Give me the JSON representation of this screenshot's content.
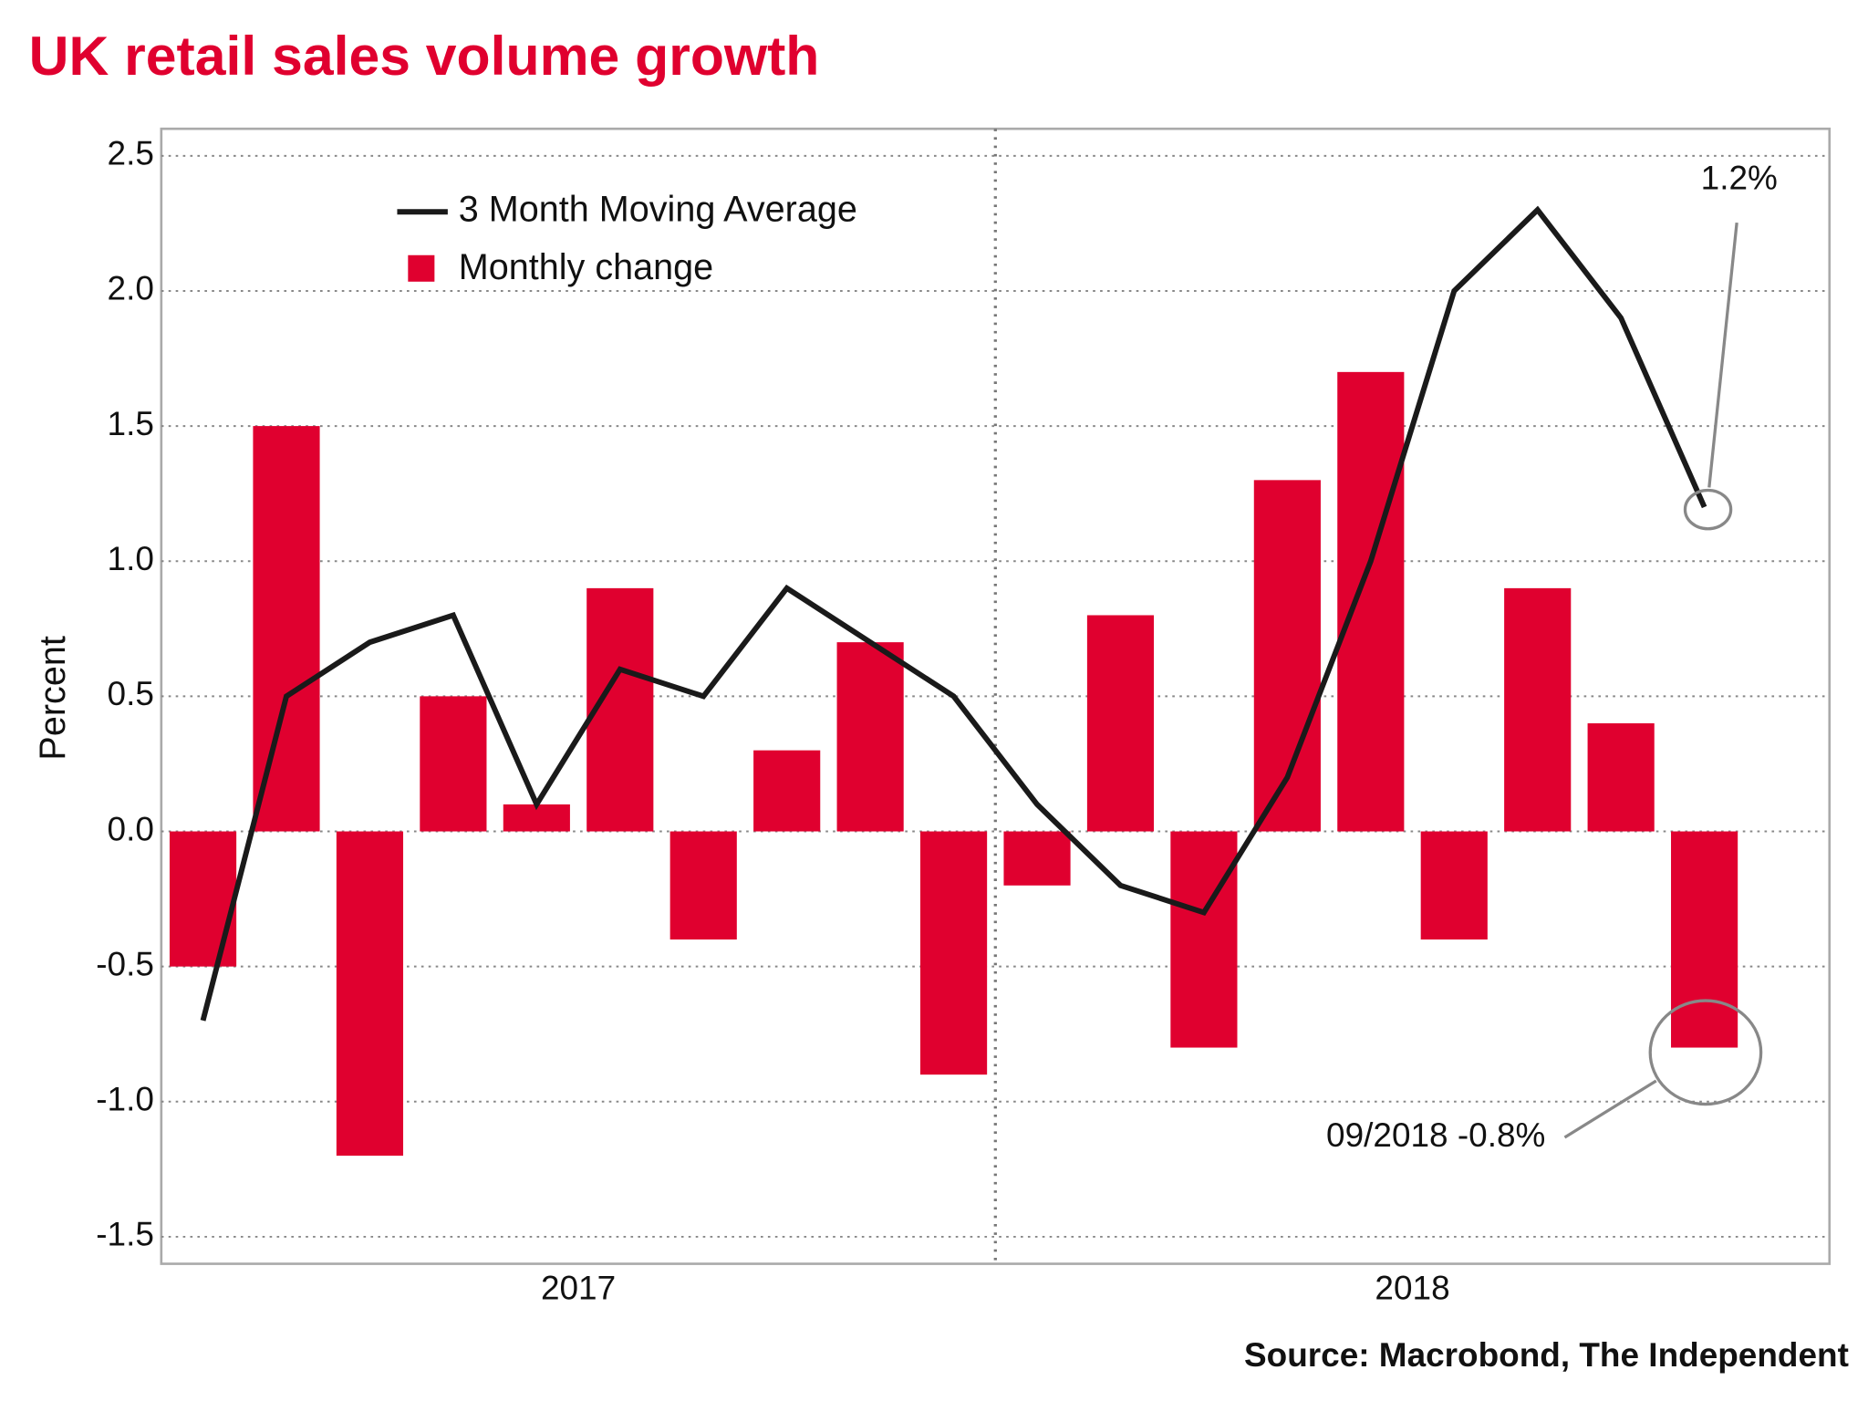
{
  "chart_data": {
    "type": "bar",
    "title": "UK retail sales volume growth",
    "y_label": "Percent",
    "source": "Source: Macrobond, The Independent",
    "categories": [
      null,
      null,
      null,
      null,
      null,
      null,
      null,
      null,
      null,
      null,
      null,
      null,
      null,
      null,
      null,
      null,
      null,
      null,
      null
    ],
    "x_group_labels": [
      "2017",
      "2018"
    ],
    "series": [
      {
        "name": "Monthly change",
        "type": "bar",
        "color": "#e0002f",
        "values": [
          -0.5,
          1.5,
          -1.2,
          0.5,
          0.1,
          0.9,
          -0.4,
          0.3,
          0.7,
          -0.9,
          -0.2,
          0.8,
          -0.8,
          1.3,
          1.7,
          -0.4,
          0.9,
          0.4,
          -0.8
        ]
      },
      {
        "name": "3 Month Moving Average",
        "type": "line",
        "color": "#1a1a1a",
        "values": [
          -0.7,
          0.5,
          0.7,
          0.8,
          0.1,
          0.6,
          0.5,
          0.9,
          0.7,
          0.5,
          0.1,
          -0.2,
          -0.3,
          0.2,
          1.0,
          2.0,
          2.3,
          1.9,
          1.2
        ]
      }
    ],
    "annotations": [
      "1.2%",
      "09/2018 -0.8%"
    ],
    "ylim": [
      -1.6,
      2.6
    ],
    "yticks": [
      {
        "value": -1.5,
        "label": "-1.5"
      },
      {
        "value": -1.0,
        "label": "-1.0"
      },
      {
        "value": -0.5,
        "label": "-0.5"
      },
      {
        "value": 0,
        "label": "0.0"
      },
      {
        "value": 0.5,
        "label": "0.5"
      },
      {
        "value": 1.0,
        "label": "1.0"
      },
      {
        "value": 1.5,
        "label": "1.5"
      },
      {
        "value": 2.0,
        "label": "2.0"
      },
      {
        "value": 2.5,
        "label": "2.5"
      }
    ],
    "grid": true
  }
}
